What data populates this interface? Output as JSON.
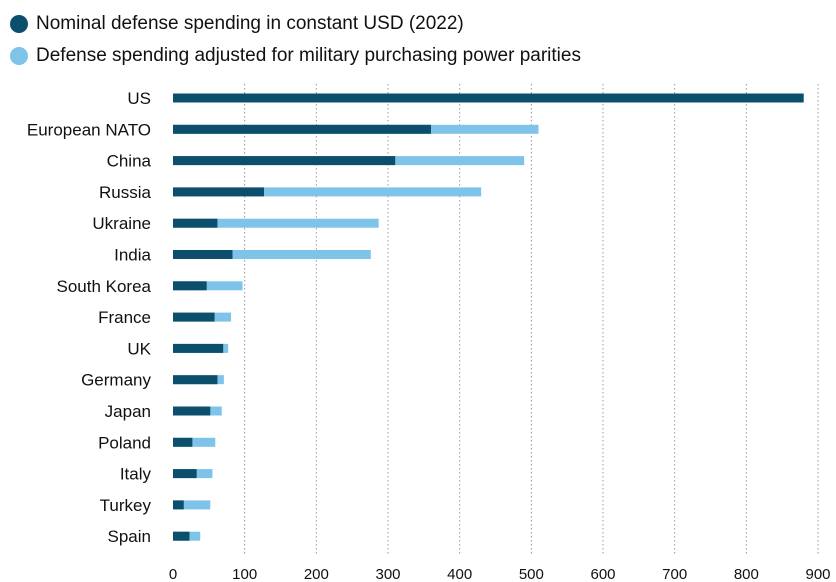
{
  "colors": {
    "nominal": "#0b4f6c",
    "adjusted": "#7ec3ea",
    "grid": "#9a9a9a"
  },
  "legend": [
    {
      "label": "Nominal defense spending in constant USD (2022)",
      "color": "#0b4f6c"
    },
    {
      "label": "Defense spending adjusted for military purchasing power parities",
      "color": "#7ec3ea"
    }
  ],
  "chart_data": {
    "type": "bar",
    "orientation": "horizontal",
    "stacked": false,
    "overlay": true,
    "categories": [
      "US",
      "European NATO",
      "China",
      "Russia",
      "Ukraine",
      "India",
      "South Korea",
      "France",
      "UK",
      "Germany",
      "Japan",
      "Poland",
      "Italy",
      "Turkey",
      "Spain"
    ],
    "series": [
      {
        "name": "Nominal defense spending in constant USD (2022)",
        "values": [
          880,
          360,
          310,
          127,
          62,
          83,
          47,
          58,
          70,
          62,
          52,
          27,
          33,
          15,
          23
        ]
      },
      {
        "name": "Defense spending adjusted for military purchasing power parities",
        "values": [
          880,
          510,
          490,
          430,
          287,
          276,
          97,
          81,
          77,
          71,
          68,
          59,
          55,
          52,
          38
        ]
      }
    ],
    "xlim": [
      0,
      900
    ],
    "xticks": [
      0,
      100,
      200,
      300,
      400,
      500,
      600,
      700,
      800,
      900
    ],
    "grid": "vertical dotted",
    "legend_position": "top-left"
  }
}
